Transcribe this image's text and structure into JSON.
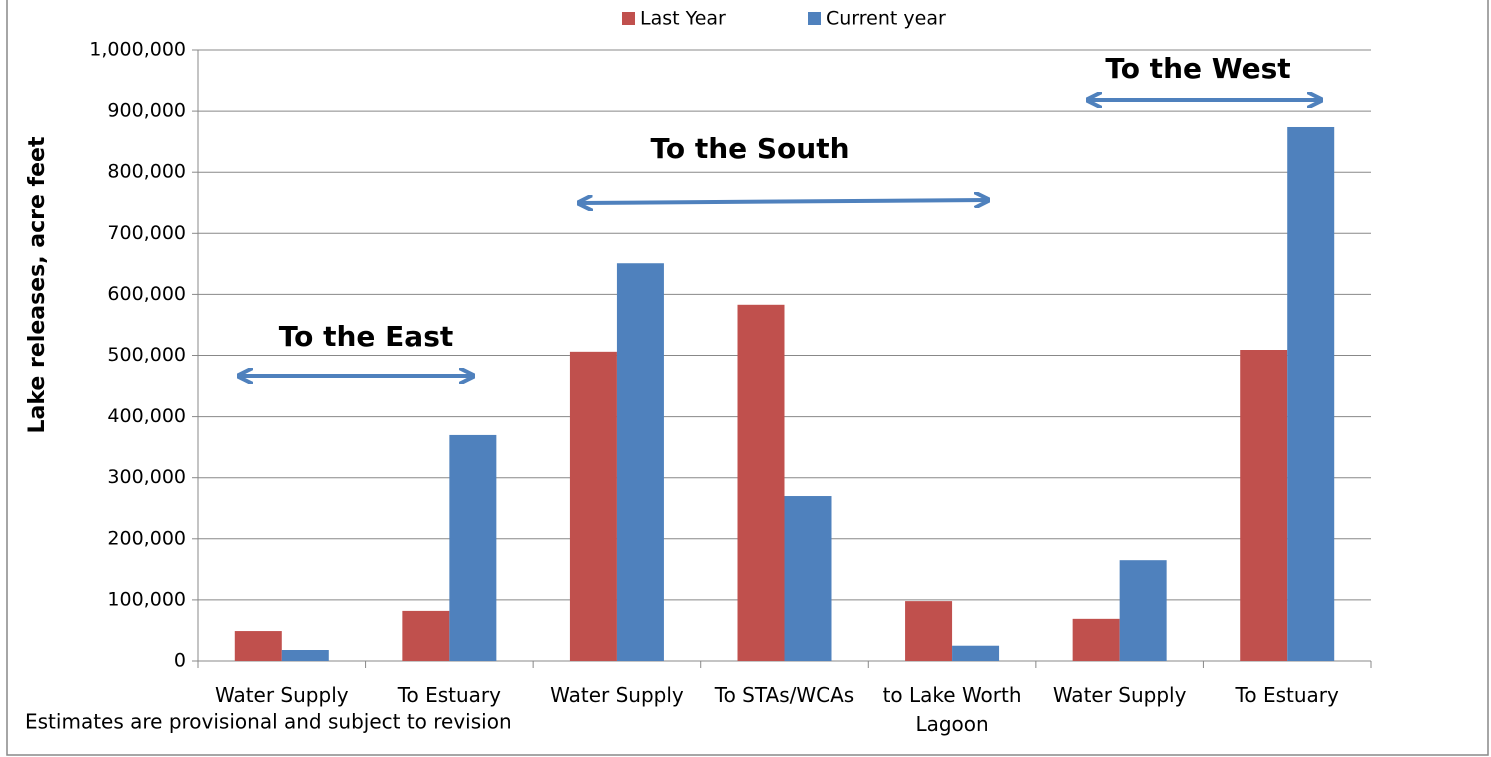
{
  "chart_data": {
    "type": "bar",
    "y_label": "Lake releases, acre feet",
    "categories": [
      "Water Supply",
      "To Estuary",
      "Water Supply",
      "To STAs/WCAs",
      "to Lake Worth Lagoon",
      "Water Supply",
      "To Estuary"
    ],
    "series": [
      {
        "name": "Last Year",
        "color": "#c0504d",
        "values": [
          49000,
          82000,
          506000,
          583000,
          98000,
          69000,
          509000
        ]
      },
      {
        "name": "Current year",
        "color": "#4f81bd",
        "values": [
          18000,
          370000,
          651000,
          270000,
          25000,
          165000,
          874000
        ]
      }
    ],
    "ylim": [
      0,
      1000000
    ],
    "yticks": [
      0,
      {
        "value": 100000,
        "label": "100,000"
      },
      {
        "value": 200000,
        "label": "200,000"
      },
      {
        "value": 300000,
        "label": "300,000"
      },
      {
        "value": 400000,
        "label": "400,000"
      },
      {
        "value": 500000,
        "label": "500,000"
      },
      {
        "value": 600000,
        "label": "600,000"
      },
      {
        "value": 700000,
        "label": "700,000"
      },
      {
        "value": 800000,
        "label": "800,000"
      },
      {
        "value": 900000,
        "label": "900,000"
      },
      {
        "value": 1000000,
        "label": "1,000,000"
      }
    ],
    "grid": true,
    "legend": "top",
    "annotations": [
      "To the East",
      "To the South",
      "To the West"
    ],
    "note": "Estimates are provisional and subject to revision"
  }
}
